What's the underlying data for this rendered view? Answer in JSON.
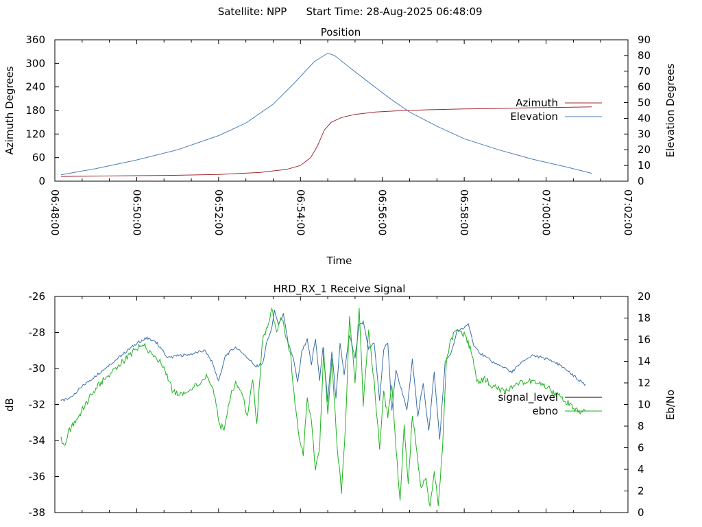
{
  "header": {
    "satellite": "Satellite: NPP",
    "start_time": "Start Time: 28-Aug-2025 06:48:09"
  },
  "chart_data": [
    {
      "type": "line",
      "title": "Position",
      "xlabel": "Time",
      "ylabel": "Azimuth Degrees",
      "y2label": "Elevation Degrees",
      "xlim": [
        0,
        840
      ],
      "ylim": [
        0,
        360
      ],
      "y2lim": [
        0,
        90
      ],
      "xticks": [
        "06:48:00",
        "06:50:00",
        "06:52:00",
        "06:54:00",
        "06:56:00",
        "06:58:00",
        "07:00:00",
        "07:02:00"
      ],
      "yticks": [
        "0",
        "60",
        "120",
        "180",
        "240",
        "300",
        "360"
      ],
      "y2ticks": [
        "0",
        "10",
        "20",
        "30",
        "40",
        "50",
        "60",
        "70",
        "80",
        "90"
      ],
      "legend_position": "right",
      "series": [
        {
          "name": "Azimuth",
          "axis": "left",
          "color": "#a0262e",
          "points": [
            [
              9,
              12
            ],
            [
              60,
              13
            ],
            [
              120,
              14
            ],
            [
              180,
              15
            ],
            [
              240,
              17
            ],
            [
              300,
              22
            ],
            [
              340,
              30
            ],
            [
              360,
              40
            ],
            [
              375,
              60
            ],
            [
              385,
              90
            ],
            [
              395,
              130
            ],
            [
              405,
              150
            ],
            [
              420,
              162
            ],
            [
              440,
              170
            ],
            [
              470,
              176
            ],
            [
              500,
              179
            ],
            [
              550,
              182
            ],
            [
              600,
              184
            ],
            [
              650,
              185
            ],
            [
              700,
              187
            ],
            [
              750,
              188
            ],
            [
              787,
              189
            ]
          ]
        },
        {
          "name": "Elevation",
          "axis": "right",
          "color": "#4a7fb5",
          "points": [
            [
              9,
              4
            ],
            [
              60,
              8
            ],
            [
              120,
              13.5
            ],
            [
              180,
              20
            ],
            [
              240,
              29
            ],
            [
              280,
              37
            ],
            [
              320,
              49
            ],
            [
              350,
              62
            ],
            [
              380,
              76
            ],
            [
              400,
              81.5
            ],
            [
              410,
              80
            ],
            [
              430,
              73
            ],
            [
              460,
              63
            ],
            [
              490,
              53
            ],
            [
              520,
              44
            ],
            [
              560,
              35
            ],
            [
              600,
              27
            ],
            [
              650,
              20
            ],
            [
              700,
              14
            ],
            [
              750,
              9
            ],
            [
              787,
              5
            ]
          ]
        }
      ]
    },
    {
      "type": "line",
      "title": "HRD_RX_1 Receive Signal",
      "xlabel": "",
      "ylabel": "dB",
      "y2label": "Eb/No",
      "xlim": [
        0,
        840
      ],
      "ylim": [
        -38,
        -26
      ],
      "y2lim": [
        0,
        20
      ],
      "yticks": [
        "-38",
        "-36",
        "-34",
        "-32",
        "-30",
        "-28",
        "-26"
      ],
      "y2ticks": [
        "0",
        "2",
        "4",
        "6",
        "8",
        "10",
        "12",
        "14",
        "16",
        "18",
        "20"
      ],
      "legend_position": "right",
      "series": [
        {
          "name": "signal_level",
          "axis": "left",
          "color": "#3a6ea8",
          "points": [
            [
              9,
              -31.8
            ],
            [
              20,
              -31.7
            ],
            [
              40,
              -31.0
            ],
            [
              60,
              -30.4
            ],
            [
              80,
              -29.8
            ],
            [
              100,
              -29.2
            ],
            [
              120,
              -28.6
            ],
            [
              135,
              -28.3
            ],
            [
              150,
              -28.6
            ],
            [
              165,
              -29.4
            ],
            [
              180,
              -29.3
            ],
            [
              200,
              -29.2
            ],
            [
              220,
              -29.0
            ],
            [
              230,
              -29.6
            ],
            [
              240,
              -30.7
            ],
            [
              250,
              -29.3
            ],
            [
              265,
              -28.8
            ],
            [
              280,
              -29.3
            ],
            [
              295,
              -29.9
            ],
            [
              305,
              -29.7
            ],
            [
              310,
              -28.6
            ],
            [
              318,
              -27.8
            ],
            [
              322,
              -26.8
            ],
            [
              328,
              -27.6
            ],
            [
              335,
              -27.0
            ],
            [
              342,
              -28.6
            ],
            [
              350,
              -29.5
            ],
            [
              356,
              -30.8
            ],
            [
              362,
              -29.0
            ],
            [
              370,
              -28.4
            ],
            [
              376,
              -29.8
            ],
            [
              382,
              -28.3
            ],
            [
              388,
              -30.7
            ],
            [
              393,
              -28.8
            ],
            [
              400,
              -31.8
            ],
            [
              406,
              -29.0
            ],
            [
              412,
              -31.7
            ],
            [
              418,
              -28.6
            ],
            [
              424,
              -30.3
            ],
            [
              432,
              -28.1
            ],
            [
              440,
              -29.4
            ],
            [
              446,
              -27.6
            ],
            [
              452,
              -27.4
            ],
            [
              460,
              -28.9
            ],
            [
              468,
              -28.6
            ],
            [
              476,
              -31.8
            ],
            [
              482,
              -28.9
            ],
            [
              488,
              -28.6
            ],
            [
              494,
              -32.4
            ],
            [
              500,
              -30.1
            ],
            [
              508,
              -31.2
            ],
            [
              516,
              -32.3
            ],
            [
              524,
              -29.5
            ],
            [
              532,
              -32.6
            ],
            [
              540,
              -30.8
            ],
            [
              548,
              -33.5
            ],
            [
              556,
              -30.2
            ],
            [
              564,
              -34.0
            ],
            [
              572,
              -29.6
            ],
            [
              580,
              -29.2
            ],
            [
              590,
              -27.9
            ],
            [
              598,
              -27.8
            ],
            [
              606,
              -27.5
            ],
            [
              614,
              -28.7
            ],
            [
              625,
              -29.2
            ],
            [
              640,
              -29.6
            ],
            [
              655,
              -29.9
            ],
            [
              670,
              -30.2
            ],
            [
              685,
              -29.6
            ],
            [
              700,
              -29.3
            ],
            [
              715,
              -29.4
            ],
            [
              730,
              -29.6
            ],
            [
              745,
              -29.9
            ],
            [
              760,
              -30.4
            ],
            [
              770,
              -30.7
            ],
            [
              778,
              -30.9
            ]
          ]
        },
        {
          "name": "ebno",
          "axis": "right",
          "color": "#1db31d",
          "points": [
            [
              9,
              7.0
            ],
            [
              14,
              6.0
            ],
            [
              20,
              7.5
            ],
            [
              30,
              8.4
            ],
            [
              45,
              10.0
            ],
            [
              60,
              11.5
            ],
            [
              80,
              12.8
            ],
            [
              100,
              14.0
            ],
            [
              120,
              15.2
            ],
            [
              132,
              15.4
            ],
            [
              145,
              14.6
            ],
            [
              160,
              13.5
            ],
            [
              172,
              11.3
            ],
            [
              180,
              11.0
            ],
            [
              195,
              11.0
            ],
            [
              210,
              12.0
            ],
            [
              222,
              12.5
            ],
            [
              232,
              11.5
            ],
            [
              242,
              8.0
            ],
            [
              248,
              7.8
            ],
            [
              256,
              10.5
            ],
            [
              265,
              12.0
            ],
            [
              274,
              11.2
            ],
            [
              282,
              9.0
            ],
            [
              290,
              12.2
            ],
            [
              296,
              8.2
            ],
            [
              304,
              15.8
            ],
            [
              310,
              17.0
            ],
            [
              318,
              18.7
            ],
            [
              325,
              16.8
            ],
            [
              333,
              18.0
            ],
            [
              340,
              16.0
            ],
            [
              346,
              14.2
            ],
            [
              352,
              10.0
            ],
            [
              358,
              7.0
            ],
            [
              364,
              5.5
            ],
            [
              370,
              10.4
            ],
            [
              376,
              8.4
            ],
            [
              382,
              4.0
            ],
            [
              388,
              6.0
            ],
            [
              394,
              15.0
            ],
            [
              400,
              9.0
            ],
            [
              406,
              14.0
            ],
            [
              414,
              6.0
            ],
            [
              420,
              2.0
            ],
            [
              426,
              8.0
            ],
            [
              432,
              18.0
            ],
            [
              440,
              12.0
            ],
            [
              446,
              19.0
            ],
            [
              452,
              10.0
            ],
            [
              460,
              17.0
            ],
            [
              468,
              12.0
            ],
            [
              476,
              6.0
            ],
            [
              482,
              11.0
            ],
            [
              488,
              9.0
            ],
            [
              494,
              12.0
            ],
            [
              500,
              6.0
            ],
            [
              506,
              1.0
            ],
            [
              512,
              8.0
            ],
            [
              518,
              2.5
            ],
            [
              524,
              9.0
            ],
            [
              530,
              6.0
            ],
            [
              536,
              2.5
            ],
            [
              544,
              3.0
            ],
            [
              550,
              0.5
            ],
            [
              556,
              4.0
            ],
            [
              562,
              0.5
            ],
            [
              568,
              6.0
            ],
            [
              574,
              14.0
            ],
            [
              580,
              16.0
            ],
            [
              590,
              17.0
            ],
            [
              600,
              16.5
            ],
            [
              610,
              15.0
            ],
            [
              620,
              12.0
            ],
            [
              630,
              12.4
            ],
            [
              640,
              11.8
            ],
            [
              650,
              11.5
            ],
            [
              660,
              11.2
            ],
            [
              675,
              11.8
            ],
            [
              690,
              12.2
            ],
            [
              705,
              12.0
            ],
            [
              720,
              11.6
            ],
            [
              735,
              11.0
            ],
            [
              745,
              10.4
            ],
            [
              755,
              10.0
            ],
            [
              762,
              9.6
            ],
            [
              770,
              9.4
            ],
            [
              778,
              9.4
            ]
          ]
        }
      ]
    }
  ]
}
